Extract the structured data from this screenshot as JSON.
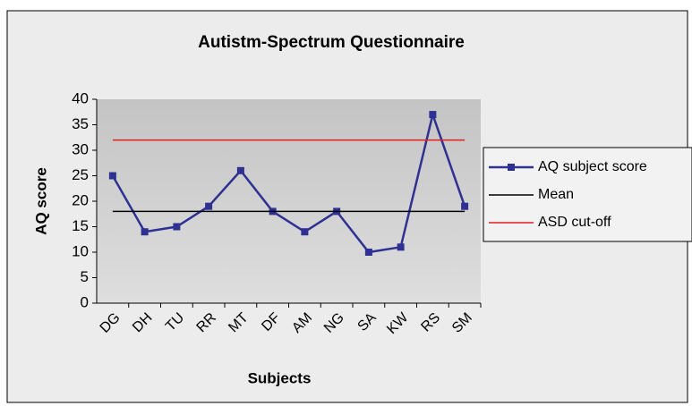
{
  "chart_data": {
    "type": "line",
    "title": "Autistm-Spectrum Questionnaire",
    "x_label": "Subjects",
    "y_label": "AQ score",
    "categories": [
      "DG",
      "DH",
      "TU",
      "RR",
      "MT",
      "DF",
      "AM",
      "NG",
      "SA",
      "KW",
      "RS",
      "SM"
    ],
    "series": [
      {
        "name": "AQ subject score",
        "color": "#2e3192",
        "marker": "square",
        "values": [
          25,
          14,
          15,
          19,
          26,
          18,
          14,
          18,
          10,
          11,
          37,
          19
        ]
      },
      {
        "name": "Mean",
        "color": "#000000",
        "values": [
          18,
          18,
          18,
          18,
          18,
          18,
          18,
          18,
          18,
          18,
          18,
          18
        ]
      },
      {
        "name": "ASD cut-off",
        "color": "#e0201c",
        "values": [
          32,
          32,
          32,
          32,
          32,
          32,
          32,
          32,
          32,
          32,
          32,
          32
        ]
      }
    ],
    "ylim": [
      0,
      40
    ],
    "yticks": [
      0,
      5,
      10,
      15,
      20,
      25,
      30,
      35,
      40
    ],
    "legend": "right"
  }
}
